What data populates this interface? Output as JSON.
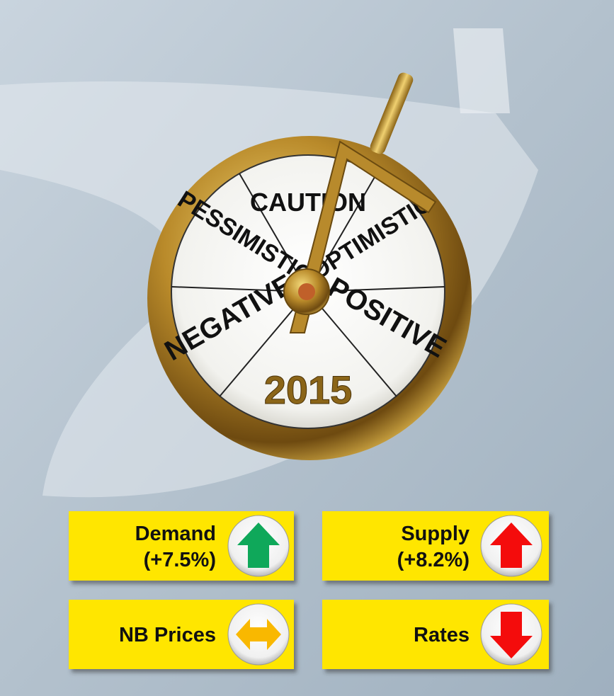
{
  "gauge": {
    "sectors": {
      "top": "CAUTION",
      "upper_left": "PESSIMISTIC",
      "upper_right": "OPTIMISTIC",
      "lower_left": "NEGATIVE",
      "lower_right": "POSITIVE"
    },
    "year": "2015"
  },
  "cards": [
    {
      "label": "Demand",
      "change": "(+7.5%)"
    },
    {
      "label": "Supply",
      "change": "(+8.2%)"
    },
    {
      "label": "NB Prices"
    },
    {
      "label": "Rates"
    }
  ]
}
